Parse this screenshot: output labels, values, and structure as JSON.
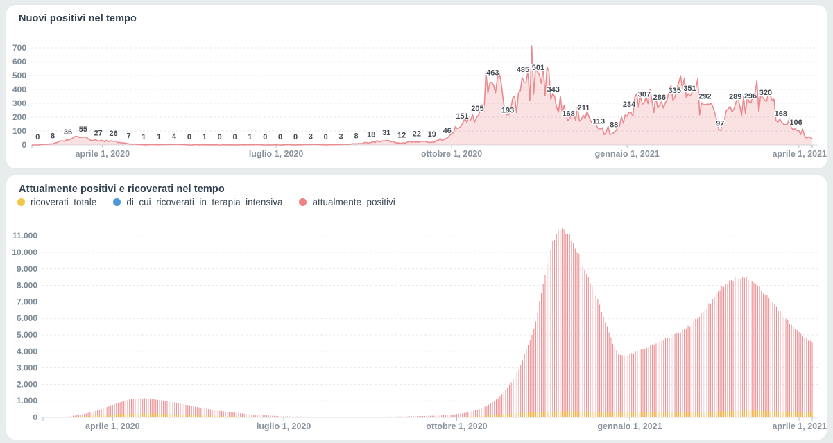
{
  "page": {
    "background": "#e9eced",
    "card_color": "#ffffff"
  },
  "chart_data": [
    {
      "type": "area",
      "title": "Nuovi positivi nel tempo",
      "xlabel": "",
      "ylabel": "",
      "ylim": [
        0,
        700
      ],
      "grid": true,
      "legend_position": "none",
      "yticks": [
        0,
        100,
        200,
        300,
        400,
        500,
        600,
        700
      ],
      "xticks": [
        {
          "day": 37,
          "label": "aprile 1, 2020"
        },
        {
          "day": 128,
          "label": "luglio 1, 2020"
        },
        {
          "day": 220,
          "label": "ottobre 1, 2020"
        },
        {
          "day": 312,
          "label": "gennaio 1, 2021"
        },
        {
          "day": 402,
          "label": "aprile 1, 2021"
        }
      ],
      "days_total": 409,
      "label_start_day": 3,
      "label_step_days": 7.95,
      "labeled_values": [
        0,
        8,
        36,
        55,
        27,
        26,
        7,
        1,
        1,
        4,
        0,
        1,
        0,
        0,
        1,
        0,
        0,
        0,
        3,
        0,
        3,
        8,
        18,
        31,
        12,
        22,
        19,
        46,
        151,
        205,
        463,
        193,
        485,
        501,
        343,
        168,
        211,
        113,
        88,
        234,
        307,
        286,
        335,
        351,
        292,
        97,
        289,
        296,
        320,
        168,
        106
      ],
      "line_color": "#e98b90",
      "fill_color": "rgba(236,146,151,0.28)"
    },
    {
      "type": "bar",
      "title": "Attualmente positivi e ricoverati nel tempo",
      "xlabel": "",
      "ylabel": "",
      "ylim": [
        0,
        11400
      ],
      "grid": true,
      "legend_position": "top",
      "ytick_values": [
        0,
        1000,
        2000,
        3000,
        4000,
        5000,
        6000,
        7000,
        8000,
        9000,
        10000,
        11000
      ],
      "ytick_labels": [
        "0",
        "1.000",
        "2.000",
        "3.000",
        "4.000",
        "5.000",
        "6.000",
        "7.000",
        "8.000",
        "9.000",
        "10.000",
        "11.000"
      ],
      "xticks": [
        {
          "day": 37,
          "label": "aprile 1, 2020"
        },
        {
          "day": 128,
          "label": "luglio 1, 2020"
        },
        {
          "day": 220,
          "label": "ottobre 1, 2020"
        },
        {
          "day": 312,
          "label": "gennaio 1, 2021"
        },
        {
          "day": 402,
          "label": "aprile 1, 2021"
        }
      ],
      "days_total": 409,
      "series": [
        {
          "name": "ricoverati_totale",
          "color": "#f2c74b",
          "bar_color": "#f3b74d",
          "anchors": [
            [
              0,
              0
            ],
            [
              10,
              15
            ],
            [
              20,
              60
            ],
            [
              30,
              130
            ],
            [
              40,
              200
            ],
            [
              50,
              245
            ],
            [
              58,
              240
            ],
            [
              66,
              215
            ],
            [
              75,
              175
            ],
            [
              85,
              130
            ],
            [
              95,
              90
            ],
            [
              105,
              60
            ],
            [
              115,
              40
            ],
            [
              130,
              20
            ],
            [
              145,
              12
            ],
            [
              160,
              8
            ],
            [
              175,
              8
            ],
            [
              190,
              12
            ],
            [
              205,
              20
            ],
            [
              215,
              30
            ],
            [
              222,
              45
            ],
            [
              228,
              70
            ],
            [
              234,
              105
            ],
            [
              240,
              150
            ],
            [
              246,
              200
            ],
            [
              252,
              250
            ],
            [
              258,
              295
            ],
            [
              264,
              330
            ],
            [
              270,
              355
            ],
            [
              276,
              370
            ],
            [
              282,
              370
            ],
            [
              288,
              360
            ],
            [
              294,
              345
            ],
            [
              300,
              330
            ],
            [
              306,
              315
            ],
            [
              312,
              305
            ],
            [
              318,
              300
            ],
            [
              325,
              300
            ],
            [
              332,
              305
            ],
            [
              340,
              315
            ],
            [
              348,
              330
            ],
            [
              356,
              350
            ],
            [
              364,
              375
            ],
            [
              370,
              395
            ],
            [
              375,
              405
            ],
            [
              380,
              400
            ],
            [
              385,
              385
            ],
            [
              390,
              365
            ],
            [
              395,
              350
            ],
            [
              400,
              340
            ],
            [
              405,
              330
            ],
            [
              409,
              320
            ]
          ]
        },
        {
          "name": "di_cui_ricoverati_in_terapia_intensiva",
          "color": "#4e97d8",
          "bar_color": "#4e97d8",
          "anchors": [
            [
              0,
              0
            ],
            [
              15,
              8
            ],
            [
              25,
              20
            ],
            [
              35,
              32
            ],
            [
              45,
              40
            ],
            [
              55,
              38
            ],
            [
              65,
              32
            ],
            [
              75,
              25
            ],
            [
              85,
              18
            ],
            [
              100,
              10
            ],
            [
              115,
              6
            ],
            [
              130,
              3
            ],
            [
              150,
              1
            ],
            [
              170,
              1
            ],
            [
              190,
              2
            ],
            [
              210,
              4
            ],
            [
              220,
              7
            ],
            [
              230,
              12
            ],
            [
              240,
              18
            ],
            [
              250,
              25
            ],
            [
              260,
              32
            ],
            [
              270,
              38
            ],
            [
              280,
              40
            ],
            [
              290,
              38
            ],
            [
              300,
              35
            ],
            [
              310,
              32
            ],
            [
              320,
              30
            ],
            [
              330,
              30
            ],
            [
              340,
              32
            ],
            [
              350,
              35
            ],
            [
              360,
              40
            ],
            [
              370,
              43
            ],
            [
              378,
              44
            ],
            [
              386,
              42
            ],
            [
              394,
              40
            ],
            [
              402,
              38
            ],
            [
              409,
              36
            ]
          ]
        },
        {
          "name": "attualmente_positivi",
          "color": "#ef8287",
          "bar_color": "#eb9296",
          "anchors": [
            [
              0,
              0
            ],
            [
              6,
              8
            ],
            [
              12,
              40
            ],
            [
              18,
              120
            ],
            [
              24,
              260
            ],
            [
              30,
              460
            ],
            [
              37,
              760
            ],
            [
              43,
              1000
            ],
            [
              48,
              1120
            ],
            [
              53,
              1150
            ],
            [
              58,
              1110
            ],
            [
              64,
              1020
            ],
            [
              70,
              900
            ],
            [
              78,
              720
            ],
            [
              86,
              540
            ],
            [
              94,
              390
            ],
            [
              102,
              280
            ],
            [
              110,
              190
            ],
            [
              120,
              110
            ],
            [
              130,
              65
            ],
            [
              142,
              42
            ],
            [
              155,
              33
            ],
            [
              168,
              30
            ],
            [
              180,
              40
            ],
            [
              192,
              60
            ],
            [
              204,
              90
            ],
            [
              212,
              120
            ],
            [
              218,
              170
            ],
            [
              224,
              260
            ],
            [
              230,
              420
            ],
            [
              236,
              700
            ],
            [
              242,
              1150
            ],
            [
              248,
              1900
            ],
            [
              253,
              2900
            ],
            [
              258,
              4400
            ],
            [
              262,
              5700
            ],
            [
              266,
              8200
            ],
            [
              269,
              9800
            ],
            [
              272,
              11000
            ],
            [
              275,
              11400
            ],
            [
              278,
              11300
            ],
            [
              281,
              10800
            ],
            [
              284,
              10100
            ],
            [
              287,
              9300
            ],
            [
              290,
              8500
            ],
            [
              293,
              7700
            ],
            [
              296,
              6800
            ],
            [
              299,
              5800
            ],
            [
              302,
              4800
            ],
            [
              304,
              4200
            ],
            [
              306,
              3850
            ],
            [
              309,
              3650
            ],
            [
              312,
              3800
            ],
            [
              316,
              4000
            ],
            [
              320,
              4200
            ],
            [
              325,
              4450
            ],
            [
              330,
              4700
            ],
            [
              336,
              5000
            ],
            [
              342,
              5400
            ],
            [
              348,
              6000
            ],
            [
              354,
              6800
            ],
            [
              359,
              7600
            ],
            [
              363,
              8100
            ],
            [
              367,
              8400
            ],
            [
              371,
              8500
            ],
            [
              375,
              8400
            ],
            [
              379,
              8100
            ],
            [
              384,
              7500
            ],
            [
              389,
              6800
            ],
            [
              394,
              6100
            ],
            [
              399,
              5500
            ],
            [
              403,
              5000
            ],
            [
              406,
              4750
            ],
            [
              409,
              4500
            ]
          ]
        }
      ]
    }
  ]
}
